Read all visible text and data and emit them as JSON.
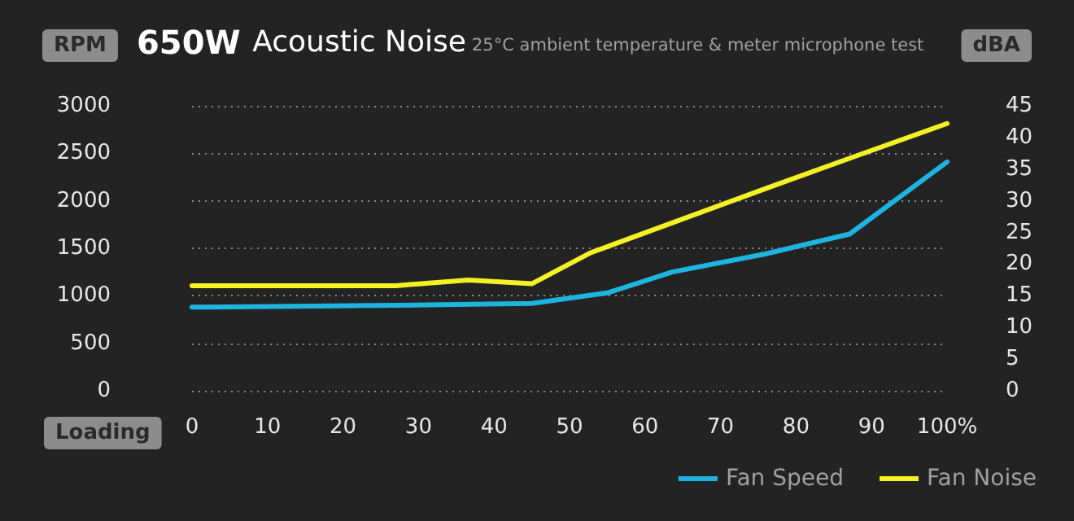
{
  "chart_data": {
    "type": "line",
    "title": "650W Acoustic Noise",
    "subtitle": "25°C ambient temperature & meter microphone test",
    "xlabel": "Loading",
    "ylabel": "RPM",
    "y2label": "dBA",
    "xlim": [
      0,
      100
    ],
    "xticks": [
      0,
      10,
      20,
      30,
      40,
      50,
      60,
      70,
      80,
      90,
      {
        "value": 100,
        "label": "100%"
      }
    ],
    "ylim": [
      0,
      3000
    ],
    "yticks": [
      0,
      500,
      1000,
      1500,
      2000,
      2500,
      3000
    ],
    "y2lim": [
      0,
      45
    ],
    "y2ticks": [
      0,
      5,
      10,
      15,
      20,
      25,
      30,
      35,
      40,
      45
    ],
    "series": [
      {
        "name": "Fan Speed",
        "color": "#1eb4e0",
        "x": [
          0,
          27,
          45,
          55,
          63.6,
          75.9,
          87.1,
          100
        ],
        "values": [
          880,
          900,
          920,
          1030,
          1250,
          1440,
          1650,
          2410
        ]
      },
      {
        "name": "Fan Noise",
        "color": "#f4f224",
        "axis": "y2",
        "x": [
          0,
          27,
          36.6,
          45,
          52.8,
          75.9,
          87.3,
          100
        ],
        "values": [
          16.6,
          16.6,
          17.5,
          16.9,
          21.8,
          31.9,
          36.8,
          42.2
        ]
      }
    ],
    "grid": "y",
    "legend": "bottom right",
    "marker": "none",
    "line_style": "solid"
  }
}
